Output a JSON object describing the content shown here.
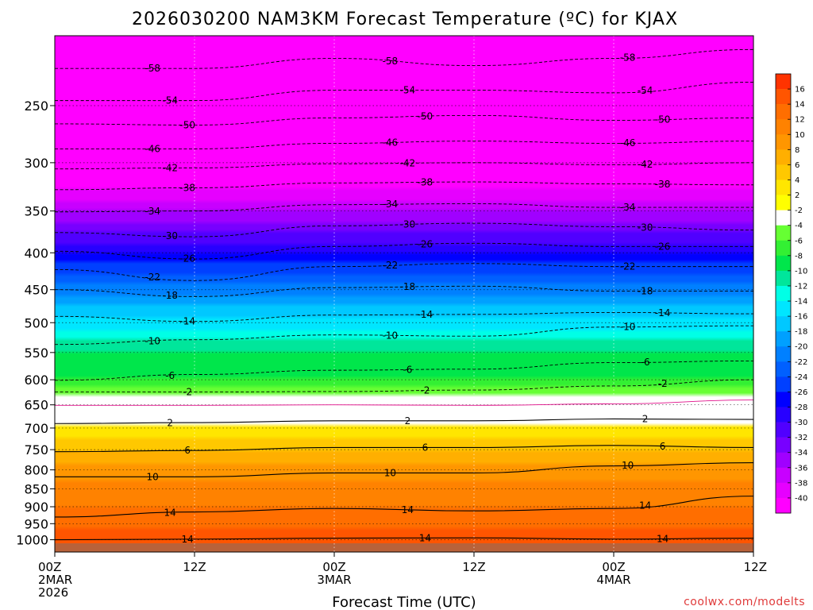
{
  "chart_data": {
    "type": "heatmap",
    "title": "2026030200 NAM3KM Forecast Temperature (ºC) for KJAX",
    "xlabel": "Forecast Time (UTC)",
    "ylabel": "",
    "credit": "coolwx.com/modelts",
    "x_ticks": [
      {
        "hour": 0,
        "lines": [
          "00Z",
          "2MAR",
          "2026"
        ]
      },
      {
        "hour": 12,
        "lines": [
          "12Z"
        ]
      },
      {
        "hour": 24,
        "lines": [
          "00Z",
          "3MAR"
        ]
      },
      {
        "hour": 36,
        "lines": [
          "12Z"
        ]
      },
      {
        "hour": 48,
        "lines": [
          "00Z",
          "4MAR"
        ]
      },
      {
        "hour": 60,
        "lines": [
          "12Z"
        ]
      }
    ],
    "xlim_hours": [
      0,
      60
    ],
    "y_ticks": [
      250,
      300,
      350,
      400,
      450,
      500,
      550,
      600,
      650,
      700,
      750,
      800,
      850,
      900,
      950,
      1000
    ],
    "ylim_hpa": [
      1040,
      200
    ],
    "y_scale": "log-pressure",
    "colorbar": {
      "labels": [
        "16",
        "14",
        "12",
        "10",
        "8",
        "6",
        "4",
        "2",
        "-2",
        "-4",
        "-6",
        "-8",
        "-10",
        "-12",
        "-14",
        "-16",
        "-18",
        "-20",
        "-22",
        "-24",
        "-26",
        "-28",
        "-30",
        "-32",
        "-34",
        "-36",
        "-38",
        "-40"
      ],
      "colors": [
        "#ff3300",
        "#ff5500",
        "#ff6e00",
        "#ff8200",
        "#ff9600",
        "#ffaf00",
        "#ffc800",
        "#ffe600",
        "#ffff00",
        "#ffffff",
        "#66ff33",
        "#33f033",
        "#00e64b",
        "#00e69b",
        "#00ffe6",
        "#00e6ff",
        "#00c8ff",
        "#00a0ff",
        "#0080ff",
        "#0060ff",
        "#0040ff",
        "#0000ff",
        "#2800ff",
        "#5000ff",
        "#7800ff",
        "#a000ff",
        "#c800ff",
        "#e600ff",
        "#ff00ff"
      ]
    },
    "temperature_profile": [
      {
        "p": 1040,
        "t": 17
      },
      {
        "p": 1000,
        "t": 15
      },
      {
        "p": 950,
        "t": 13.5
      },
      {
        "p": 900,
        "t": 12
      },
      {
        "p": 850,
        "t": 11
      },
      {
        "p": 800,
        "t": 9
      },
      {
        "p": 750,
        "t": 6
      },
      {
        "p": 700,
        "t": 2.5
      },
      {
        "p": 650,
        "t": 0
      },
      {
        "p": 620,
        "t": -3
      },
      {
        "p": 600,
        "t": -6
      },
      {
        "p": 550,
        "t": -8
      },
      {
        "p": 500,
        "t": -13
      },
      {
        "p": 450,
        "t": -19
      },
      {
        "p": 400,
        "t": -26
      },
      {
        "p": 350,
        "t": -34
      },
      {
        "p": 300,
        "t": -43
      },
      {
        "p": 250,
        "t": -52
      },
      {
        "p": 200,
        "t": -60
      }
    ],
    "contours": [
      {
        "label": "-58",
        "style": "dashed",
        "p": [
          222,
          222,
          215,
          220,
          215,
          209
        ]
      },
      {
        "label": "-54",
        "style": "dashed",
        "p": [
          246,
          246,
          238,
          238,
          240,
          232
        ]
      },
      {
        "label": "-50",
        "style": "dashed",
        "p": [
          265,
          266,
          260,
          258,
          262,
          260
        ]
      },
      {
        "label": "-46",
        "style": "dashed",
        "p": [
          287,
          287,
          282,
          280,
          282,
          280
        ]
      },
      {
        "label": "-42",
        "style": "dashed",
        "p": [
          306,
          305,
          301,
          300,
          302,
          300
        ]
      },
      {
        "label": "-38",
        "style": "dashed",
        "p": [
          327,
          325,
          320,
          319,
          321,
          322
        ]
      },
      {
        "label": "-34",
        "style": "dashed",
        "p": [
          351,
          350,
          343,
          342,
          346,
          346
        ]
      },
      {
        "label": "-30",
        "style": "dashed",
        "p": [
          375,
          380,
          367,
          364,
          368,
          372
        ]
      },
      {
        "label": "-26",
        "style": "dashed",
        "p": [
          398,
          408,
          392,
          388,
          392,
          392
        ]
      },
      {
        "label": "-22",
        "style": "dashed",
        "p": [
          422,
          437,
          418,
          414,
          418,
          418
        ]
      },
      {
        "label": "-18",
        "style": "dashed",
        "p": [
          450,
          460,
          447,
          445,
          452,
          452
        ]
      },
      {
        "label": "-14",
        "style": "dashed",
        "p": [
          490,
          498,
          488,
          487,
          484,
          486
        ]
      },
      {
        "label": "-10",
        "style": "dashed",
        "p": [
          536,
          528,
          520,
          522,
          507,
          505
        ]
      },
      {
        "label": "-6",
        "style": "dashed",
        "p": [
          601,
          590,
          582,
          580,
          568,
          565
        ]
      },
      {
        "label": "-2",
        "style": "dashed",
        "p": [
          624,
          624,
          623,
          620,
          612,
          600
        ]
      },
      {
        "label": "0",
        "style": "magenta",
        "p": [
          651,
          651,
          650,
          651,
          648,
          640
        ]
      },
      {
        "label": "2",
        "style": "solid",
        "p": [
          690,
          688,
          684,
          684,
          680,
          681
        ]
      },
      {
        "label": "6",
        "style": "solid",
        "p": [
          755,
          752,
          745,
          745,
          740,
          745
        ]
      },
      {
        "label": "10",
        "style": "solid",
        "p": [
          818,
          818,
          808,
          808,
          790,
          782
        ]
      },
      {
        "label": "14",
        "style": "solid",
        "p": [
          930,
          915,
          905,
          912,
          905,
          870
        ]
      },
      {
        "label": "14",
        "style": "solid",
        "p": [
          1000,
          998,
          995,
          994,
          998,
          995
        ]
      }
    ]
  }
}
